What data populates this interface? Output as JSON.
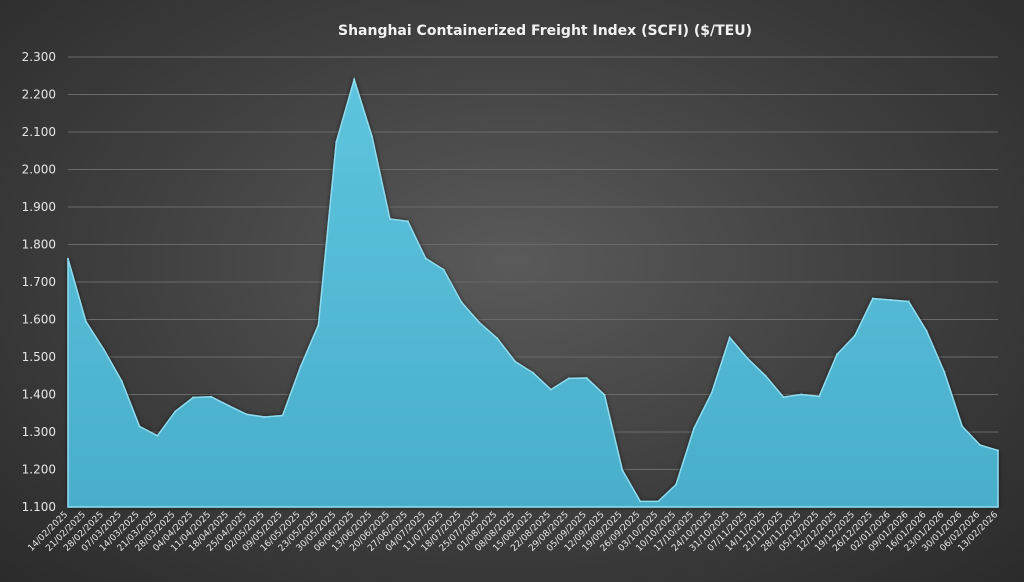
{
  "chart_data": {
    "type": "area",
    "title": "Shanghai Containerized Freight Index (SCFI) ($/TEU)",
    "ylim": [
      1100,
      2300
    ],
    "yticks": [
      1100,
      1200,
      1300,
      1400,
      1500,
      1600,
      1700,
      1800,
      1900,
      2000,
      2100,
      2200,
      2300
    ],
    "ytick_labels": [
      "1.100",
      "1.200",
      "1.300",
      "1.400",
      "1.500",
      "1.600",
      "1.700",
      "1.800",
      "1.900",
      "2.000",
      "2.100",
      "2.200",
      "2.300"
    ],
    "grid": true,
    "legend": "none",
    "colors": {
      "fill": "#4fb3cf",
      "edge": "#8fdcef",
      "grid": "#6a6a6a",
      "text": "#e6e6e6"
    },
    "x": [
      "14/02/2025",
      "21/02/2025",
      "28/02/2025",
      "07/03/2025",
      "14/03/2025",
      "21/03/2025",
      "28/03/2025",
      "04/04/2025",
      "11/04/2025",
      "18/04/2025",
      "25/04/2025",
      "02/05/2025",
      "09/05/2025",
      "16/05/2025",
      "23/05/2025",
      "30/05/2025",
      "06/06/2025",
      "13/06/2025",
      "20/06/2025",
      "27/06/2025",
      "04/07/2025",
      "11/07/2025",
      "18/07/2025",
      "25/07/2025",
      "01/08/2025",
      "08/08/2025",
      "15/08/2025",
      "22/08/2025",
      "29/08/2025",
      "05/09/2025",
      "12/09/2025",
      "19/09/2025",
      "26/09/2025",
      "03/10/2025",
      "10/10/2025",
      "17/10/2025",
      "24/10/2025",
      "31/10/2025",
      "07/11/2025",
      "14/11/2025",
      "21/11/2025",
      "28/11/2025",
      "05/12/2025",
      "12/12/2025",
      "19/12/2025",
      "26/12/2025",
      "02/01/2026",
      "09/01/2026",
      "16/01/2026",
      "23/01/2026",
      "30/01/2026",
      "06/02/2026",
      "13/02/2026"
    ],
    "values": [
      1762,
      1595,
      1520,
      1436,
      1315,
      1290,
      1355,
      1392,
      1394,
      1370,
      1347,
      1340,
      1344,
      1474,
      1585,
      2073,
      2240,
      2088,
      1868,
      1862,
      1763,
      1733,
      1646,
      1592,
      1550,
      1488,
      1458,
      1413,
      1443,
      1444,
      1399,
      1198,
      1115,
      1115,
      1160,
      1310,
      1405,
      1552,
      1496,
      1450,
      1393,
      1400,
      1395,
      1507,
      1557,
      1656,
      1652,
      1648,
      1570,
      1460,
      1315,
      1265,
      1251
    ]
  }
}
